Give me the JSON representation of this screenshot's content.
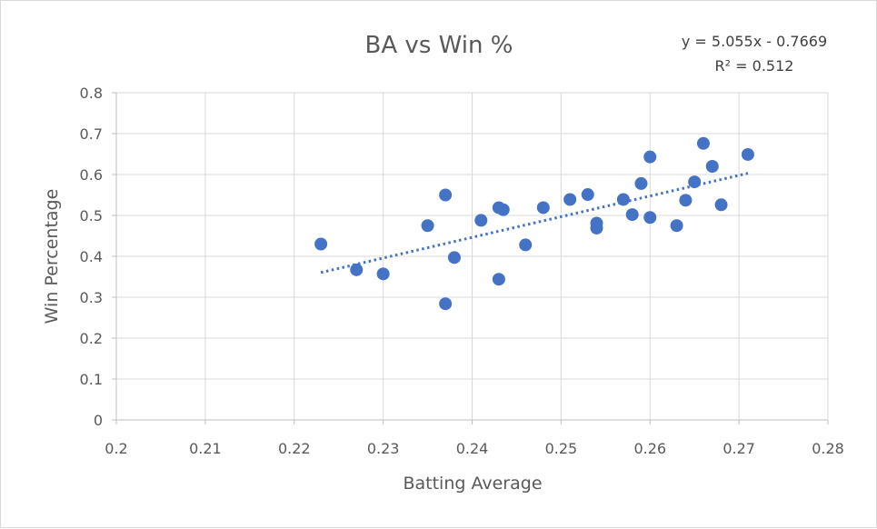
{
  "chart_data": {
    "type": "scatter",
    "title": "BA vs Win %",
    "xlabel": "Batting Average",
    "ylabel": "Win Percentage",
    "xlim": [
      0.2,
      0.28
    ],
    "ylim": [
      0,
      0.8
    ],
    "x_ticks": [
      "0.2",
      "0.21",
      "0.22",
      "0.23",
      "0.24",
      "0.25",
      "0.26",
      "0.27",
      "0.28"
    ],
    "y_ticks": [
      "0",
      "0.1",
      "0.2",
      "0.3",
      "0.4",
      "0.5",
      "0.6",
      "0.7",
      "0.8"
    ],
    "grid": true,
    "marker_color": "#4472c4",
    "trendline": {
      "equation": "y = 5.055x - 0.7669",
      "r_squared": "R² = 0.512",
      "slope": 5.055,
      "intercept": -0.7669,
      "x_range": [
        0.223,
        0.271
      ],
      "style": "dotted",
      "color": "#4472c4"
    },
    "points": [
      {
        "x": 0.223,
        "y": 0.43
      },
      {
        "x": 0.227,
        "y": 0.367
      },
      {
        "x": 0.23,
        "y": 0.357
      },
      {
        "x": 0.235,
        "y": 0.475
      },
      {
        "x": 0.237,
        "y": 0.55
      },
      {
        "x": 0.237,
        "y": 0.284
      },
      {
        "x": 0.238,
        "y": 0.397
      },
      {
        "x": 0.241,
        "y": 0.488
      },
      {
        "x": 0.243,
        "y": 0.519
      },
      {
        "x": 0.243,
        "y": 0.344
      },
      {
        "x": 0.2435,
        "y": 0.514
      },
      {
        "x": 0.246,
        "y": 0.428
      },
      {
        "x": 0.248,
        "y": 0.519
      },
      {
        "x": 0.251,
        "y": 0.539
      },
      {
        "x": 0.253,
        "y": 0.551
      },
      {
        "x": 0.254,
        "y": 0.481
      },
      {
        "x": 0.254,
        "y": 0.469
      },
      {
        "x": 0.257,
        "y": 0.539
      },
      {
        "x": 0.258,
        "y": 0.502
      },
      {
        "x": 0.259,
        "y": 0.578
      },
      {
        "x": 0.26,
        "y": 0.643
      },
      {
        "x": 0.26,
        "y": 0.495
      },
      {
        "x": 0.263,
        "y": 0.475
      },
      {
        "x": 0.264,
        "y": 0.537
      },
      {
        "x": 0.265,
        "y": 0.582
      },
      {
        "x": 0.266,
        "y": 0.676
      },
      {
        "x": 0.267,
        "y": 0.62
      },
      {
        "x": 0.268,
        "y": 0.526
      },
      {
        "x": 0.271,
        "y": 0.649
      }
    ]
  }
}
